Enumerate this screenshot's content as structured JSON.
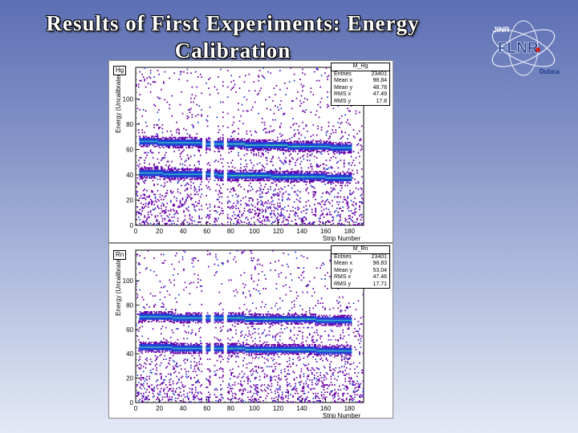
{
  "slide": {
    "title": "Results of First Experiments: Energy Calibration"
  },
  "logo": {
    "top_text": "JINR",
    "main_text": "FLNR",
    "bottom_text": "Dubna"
  },
  "colors": {
    "background_top": "#5d6fb4",
    "background_bottom": "#e4e9f5",
    "hit_low": "#6a00a8",
    "hit_mid": "#1f3fd6",
    "hit_high": "#2bb5c7",
    "hit_peak": "#3be0a0"
  },
  "chart_data": [
    {
      "type": "heatmap",
      "label": "Hg",
      "stats_title": "M_Hg",
      "stats": [
        {
          "name": "Entries",
          "value": "23401"
        },
        {
          "name": "Mean x",
          "value": "98.84"
        },
        {
          "name": "Mean y",
          "value": "48.78"
        },
        {
          "name": "RMS x",
          "value": "47.49"
        },
        {
          "name": "RMS y",
          "value": "17.8"
        }
      ],
      "xlabel": "Strip Number",
      "ylabel": "Energy (Uncalibrated)",
      "xlim": [
        0,
        192
      ],
      "ylim": [
        0,
        125
      ],
      "xticks": [
        0,
        20,
        40,
        60,
        80,
        100,
        120,
        140,
        160,
        180
      ],
      "yticks": [
        0,
        20,
        40,
        60,
        80,
        100
      ],
      "bands": [
        {
          "y_start": 66,
          "y_end": 61,
          "width": 4
        },
        {
          "y_start": 41,
          "y_end": 37,
          "width": 4
        }
      ],
      "dead_strips": [
        [
          56,
          58
        ],
        [
          63,
          65
        ],
        [
          74,
          76
        ]
      ],
      "grid": false
    },
    {
      "type": "heatmap",
      "label": "Rn",
      "stats_title": "M_Rn",
      "stats": [
        {
          "name": "Entries",
          "value": "23401"
        },
        {
          "name": "Mean x",
          "value": "98.83"
        },
        {
          "name": "Mean y",
          "value": "53.04"
        },
        {
          "name": "RMS x",
          "value": "47.46"
        },
        {
          "name": "RMS y",
          "value": "17.71"
        }
      ],
      "xlabel": "Strip Number",
      "ylabel": "Energy (Uncalibrated)",
      "xlim": [
        0,
        192
      ],
      "ylim": [
        0,
        125
      ],
      "xticks": [
        0,
        20,
        40,
        60,
        80,
        100,
        120,
        140,
        160,
        180
      ],
      "yticks": [
        0,
        20,
        40,
        60,
        80,
        100
      ],
      "bands": [
        {
          "y_start": 70,
          "y_end": 67,
          "width": 4
        },
        {
          "y_start": 45,
          "y_end": 42,
          "width": 4
        }
      ],
      "dead_strips": [
        [
          56,
          58
        ],
        [
          63,
          65
        ],
        [
          74,
          76
        ]
      ],
      "grid": false
    }
  ]
}
